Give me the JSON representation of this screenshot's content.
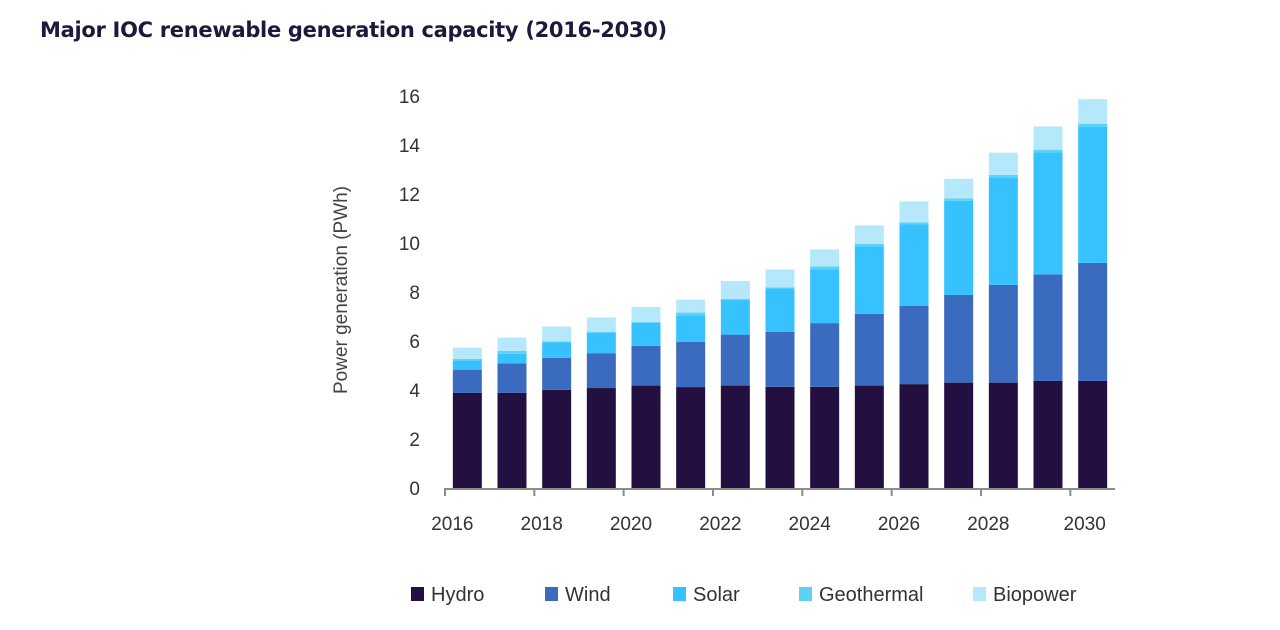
{
  "chart_data": {
    "type": "bar",
    "stacked": true,
    "title": "Major IOC renewable generation capacity (2016-2030)",
    "xlabel": "",
    "ylabel": "Power generation (PWh)",
    "ylim": [
      0,
      16
    ],
    "yticks": [
      "0",
      "2",
      "4",
      "6",
      "8",
      "10",
      "12",
      "14",
      "16"
    ],
    "xtick_labels": [
      "2016",
      "2018",
      "2020",
      "2022",
      "2024",
      "2026",
      "2028",
      "2030"
    ],
    "grid": false,
    "legend_position": "bottom",
    "categories": [
      "2016",
      "2017",
      "2018",
      "2019",
      "2020",
      "2021",
      "2022",
      "2023",
      "2024",
      "2025",
      "2026",
      "2027",
      "2028",
      "2029",
      "2030"
    ],
    "series": [
      {
        "name": "Hydro",
        "color": "#231040",
        "values": [
          3.88,
          3.88,
          4.01,
          4.08,
          4.18,
          4.12,
          4.18,
          4.13,
          4.13,
          4.18,
          4.24,
          4.3,
          4.3,
          4.37,
          4.37
        ]
      },
      {
        "name": "Wind",
        "color": "#3A6BBE",
        "values": [
          0.95,
          1.2,
          1.3,
          1.41,
          1.62,
          1.85,
          2.08,
          2.24,
          2.6,
          2.93,
          3.2,
          3.58,
          3.99,
          4.35,
          4.82
        ]
      },
      {
        "name": "Solar",
        "color": "#35C2FF",
        "values": [
          0.37,
          0.4,
          0.63,
          0.84,
          0.94,
          1.08,
          1.41,
          1.77,
          2.2,
          2.75,
          3.33,
          3.84,
          4.38,
          4.98,
          5.56
        ]
      },
      {
        "name": "Geothermal",
        "color": "#5CD3F5",
        "values": [
          0.07,
          0.12,
          0.05,
          0.05,
          0.04,
          0.11,
          0.05,
          0.05,
          0.12,
          0.11,
          0.07,
          0.1,
          0.11,
          0.11,
          0.12
        ]
      },
      {
        "name": "Biopower",
        "color": "#B6E8FC",
        "values": [
          0.46,
          0.54,
          0.6,
          0.58,
          0.61,
          0.53,
          0.73,
          0.73,
          0.69,
          0.75,
          0.86,
          0.8,
          0.91,
          0.95,
          1.0
        ]
      }
    ]
  }
}
